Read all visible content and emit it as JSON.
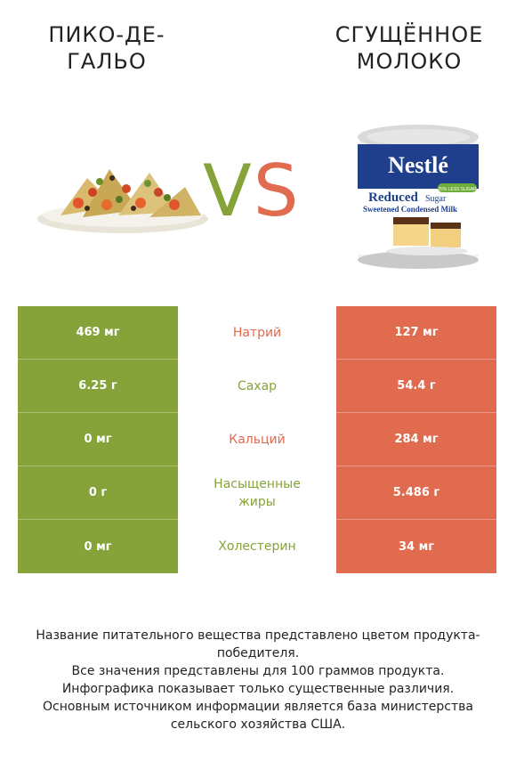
{
  "left_food": {
    "title": "ПИКО-ДЕ-ГАЛЬО",
    "color": "#86a33a"
  },
  "right_food": {
    "title": "СГУЩЁННОЕ МОЛОКО",
    "color": "#e06b4f"
  },
  "vs": {
    "v": "V",
    "s": "S"
  },
  "can_label": {
    "brand": "Nestlé",
    "badge": "25% LESS SUGAR",
    "line1": "Reduced",
    "line1b": "Sugar",
    "line2": "Sweetened Condensed Milk"
  },
  "nutrients": [
    {
      "name": "Натрий",
      "left": "469 мг",
      "right": "127 мг",
      "winner": "right"
    },
    {
      "name": "Сахар",
      "left": "6.25 г",
      "right": "54.4 г",
      "winner": "left"
    },
    {
      "name": "Кальций",
      "left": "0 мг",
      "right": "284 мг",
      "winner": "right"
    },
    {
      "name": "Насыщенные жиры",
      "left": "0 г",
      "right": "5.486 г",
      "winner": "left"
    },
    {
      "name": "Холестерин",
      "left": "0 мг",
      "right": "34 мг",
      "winner": "left"
    }
  ],
  "footer": {
    "line1": "Название питательного вещества представлено цветом продукта-победителя.",
    "line2": "Все значения представлены для 100 граммов продукта.",
    "line3": "Инфографика показывает только существенные различия.",
    "line4": "Основным источником информации является база министерства сельского хозяйства США."
  }
}
